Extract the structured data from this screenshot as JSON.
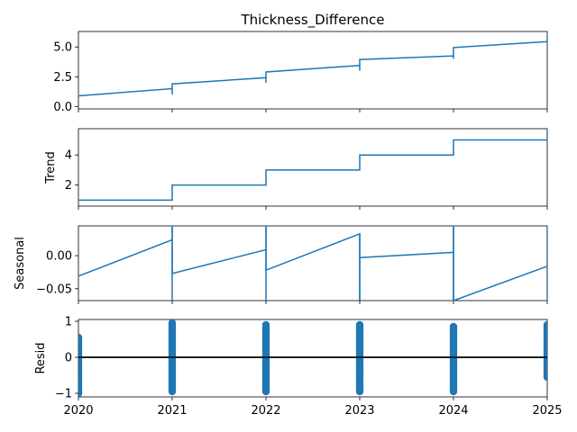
{
  "chart_data": [
    {
      "type": "line",
      "title": "Thickness_Difference",
      "ylabel": "",
      "ylim": [
        -0.2,
        6.3
      ],
      "yticks": [
        0.0,
        2.5,
        5.0
      ],
      "ytick_labels": [
        "0.0",
        "2.5",
        "5.0"
      ],
      "color": "#1f77b4",
      "x": [
        2020.0,
        2021.0,
        2021.0,
        2021.0,
        2022.0,
        2022.0,
        2022.0,
        2023.0,
        2023.0,
        2023.0,
        2024.0,
        2024.0,
        2024.0,
        2025.0,
        2025.0
      ],
      "y": [
        0.9,
        1.5,
        1.0,
        1.9,
        2.42,
        2.0,
        2.9,
        3.45,
        3.0,
        3.95,
        4.25,
        4.0,
        4.95,
        5.45,
        6.0
      ]
    },
    {
      "type": "line",
      "title": "",
      "ylabel": "Trend",
      "ylim": [
        0.6,
        5.75
      ],
      "yticks": [
        2,
        4
      ],
      "ytick_labels": [
        "2",
        "4"
      ],
      "color": "#1f77b4",
      "x": [
        2020.0,
        2021.0,
        2021.0,
        2022.0,
        2022.0,
        2023.0,
        2023.0,
        2024.0,
        2024.0,
        2025.0,
        2025.0
      ],
      "y": [
        1.0,
        1.0,
        2.0,
        2.0,
        3.0,
        3.0,
        4.0,
        4.0,
        5.0,
        5.0,
        5.75
      ]
    },
    {
      "type": "line",
      "title": "",
      "ylabel": "Seasonal",
      "ylim": [
        -0.068,
        0.045
      ],
      "yticks": [
        0.0,
        -0.05
      ],
      "ytick_labels": [
        "0.00",
        "−0.05"
      ],
      "color": "#1f77b4",
      "x": [
        2020.0,
        2021.0,
        2021.0,
        2021.0,
        2022.0,
        2022.0,
        2022.0,
        2023.0,
        2023.0,
        2023.0,
        2024.0,
        2024.0,
        2024.0,
        2025.0,
        2025.0,
        2025.0
      ],
      "y": [
        -0.031,
        0.024,
        0.045,
        -0.027,
        0.009,
        0.045,
        -0.022,
        0.033,
        -0.068,
        -0.003,
        0.005,
        0.045,
        -0.068,
        -0.016,
        0.045,
        -0.068
      ],
      "extra_segments": [
        {
          "x": [
            2021.0,
            2021.0
          ],
          "y": [
            0.045,
            -0.068
          ]
        },
        {
          "x": [
            2022.0,
            2022.0
          ],
          "y": [
            0.045,
            -0.068
          ]
        },
        {
          "x": [
            2023.0,
            2023.0
          ],
          "y": [
            0.033,
            -0.068
          ]
        },
        {
          "x": [
            2024.0,
            2024.0
          ],
          "y": [
            0.045,
            -0.068
          ]
        }
      ]
    },
    {
      "type": "scatter",
      "title": "",
      "ylabel": "Resid",
      "ylim": [
        -1.1,
        1.05
      ],
      "yticks": [
        1,
        0,
        -1
      ],
      "ytick_labels": [
        "1",
        "0",
        "−1"
      ],
      "color": "#1f77b4",
      "baseline": 0,
      "clusters": [
        {
          "x": 2020.0,
          "ymin": -1.0,
          "ymax": 0.55
        },
        {
          "x": 2021.0,
          "ymin": -0.95,
          "ymax": 0.95
        },
        {
          "x": 2022.0,
          "ymin": -0.95,
          "ymax": 0.9
        },
        {
          "x": 2023.0,
          "ymin": -0.95,
          "ymax": 0.9
        },
        {
          "x": 2024.0,
          "ymin": -0.95,
          "ymax": 0.85
        },
        {
          "x": 2025.0,
          "ymin": -0.55,
          "ymax": 0.9
        }
      ],
      "xticks": [
        2020,
        2021,
        2022,
        2023,
        2024,
        2025
      ],
      "xtick_labels": [
        "2020",
        "2021",
        "2022",
        "2023",
        "2024",
        "2025"
      ],
      "xlim": [
        2020,
        2025
      ]
    }
  ]
}
